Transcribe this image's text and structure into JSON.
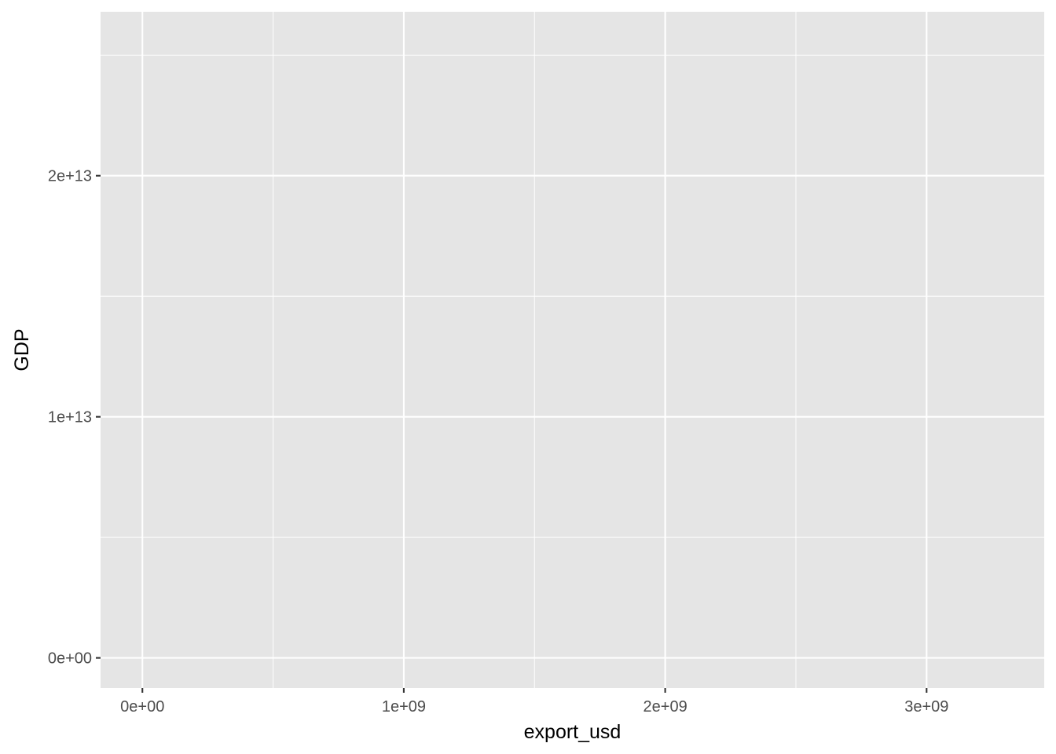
{
  "chart_data": {
    "type": "scatter",
    "title": "",
    "xlabel": "export_usd",
    "ylabel": "GDP",
    "xlim": [
      -160000000,
      3450000000
    ],
    "ylim": [
      -1250000000000,
      26800000000000
    ],
    "x_ticks": [
      {
        "value": 0,
        "label": "0e+00"
      },
      {
        "value": 1000000000,
        "label": "1e+09"
      },
      {
        "value": 2000000000,
        "label": "2e+09"
      },
      {
        "value": 3000000000,
        "label": "3e+09"
      }
    ],
    "y_ticks": [
      {
        "value": 0,
        "label": "0e+00"
      },
      {
        "value": 10000000000000,
        "label": "1e+13"
      },
      {
        "value": 20000000000000,
        "label": "2e+13"
      }
    ],
    "x_minor": [
      500000000,
      1500000000,
      2500000000
    ],
    "y_minor": [
      5000000000000,
      15000000000000,
      25000000000000
    ],
    "grid": true,
    "series": [],
    "colors": {
      "panel": "#e5e5e5",
      "grid": "#ffffff",
      "tick_label": "#4d4d4d",
      "axis_title": "#000000"
    }
  }
}
